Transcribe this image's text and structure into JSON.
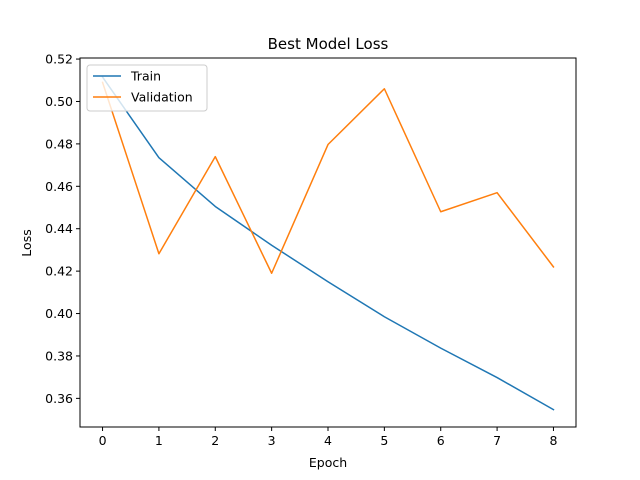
{
  "chart_data": {
    "type": "line",
    "title": "Best Model Loss",
    "xlabel": "Epoch",
    "ylabel": "Loss",
    "x": [
      0,
      1,
      2,
      3,
      4,
      5,
      6,
      7,
      8
    ],
    "xlim": [
      -0.4,
      8.4
    ],
    "ylim": [
      0.3465,
      0.5205
    ],
    "xticks": [
      0,
      1,
      2,
      3,
      4,
      5,
      6,
      7,
      8
    ],
    "yticks": [
      0.36,
      0.38,
      0.4,
      0.42,
      0.44,
      0.46,
      0.48,
      0.5,
      0.52
    ],
    "ytick_labels": [
      "0.36",
      "0.38",
      "0.40",
      "0.42",
      "0.44",
      "0.46",
      "0.48",
      "0.50",
      "0.52"
    ],
    "grid": false,
    "legend_position": "top-left",
    "series": [
      {
        "name": "Train",
        "color": "#1f77b4",
        "values": [
          0.5115,
          0.4735,
          0.4505,
          0.4322,
          0.415,
          0.3985,
          0.3837,
          0.3698,
          0.3547
        ]
      },
      {
        "name": "Validation",
        "color": "#ff7f0e",
        "values": [
          0.509,
          0.4282,
          0.474,
          0.419,
          0.4797,
          0.506,
          0.448,
          0.457,
          0.422
        ]
      }
    ]
  }
}
